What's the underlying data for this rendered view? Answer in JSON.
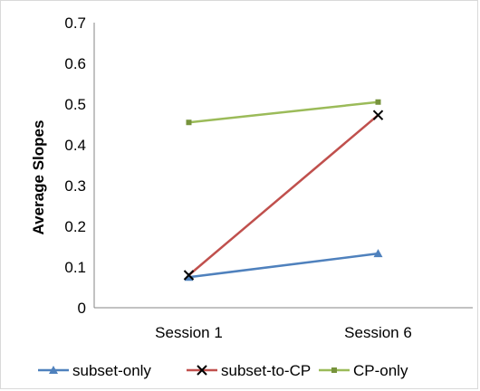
{
  "chart_data": {
    "type": "line",
    "title": "",
    "xlabel": "",
    "ylabel": "Average Slopes",
    "categories": [
      "Session 1",
      "Session 6"
    ],
    "ylim": [
      0,
      0.7
    ],
    "yticks": [
      "0",
      "0.1",
      "0.2",
      "0.3",
      "0.4",
      "0.5",
      "0.6",
      "0.7"
    ],
    "grid": false,
    "legend_position": "bottom",
    "series": [
      {
        "name": "subset-only",
        "values": [
          0.075,
          0.133
        ],
        "color": "#4f81bd",
        "marker": "triangle"
      },
      {
        "name": "subset-to-CP",
        "values": [
          0.08,
          0.473
        ],
        "color": "#c0504d",
        "marker": "x"
      },
      {
        "name": "CP-only",
        "values": [
          0.455,
          0.505
        ],
        "color": "#9bbb59",
        "marker": "square"
      }
    ]
  }
}
